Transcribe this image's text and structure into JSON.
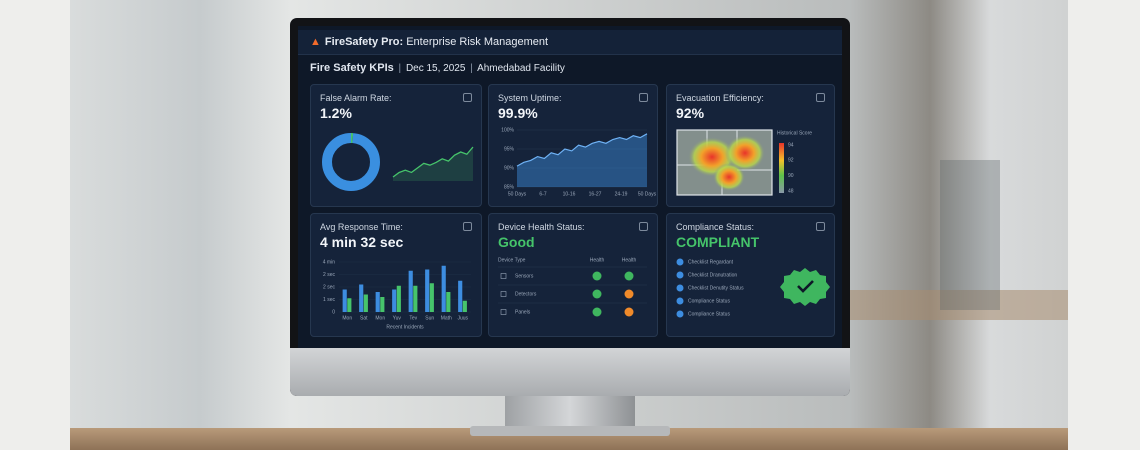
{
  "header": {
    "brand": "FireSafety Pro:",
    "title": "Enterprise Risk Management"
  },
  "subheader": {
    "title": "Fire Safety KPIs",
    "separator": "|",
    "date": "Dec 15, 2025",
    "facility": "Ahmedabad Facility"
  },
  "cards": {
    "false_alarm": {
      "label": "False Alarm Rate:",
      "value": "1.2%",
      "donut": {
        "values": [
          1.2,
          98.8
        ],
        "colors": [
          "#46c46b",
          "#3a8fe0"
        ]
      },
      "trend": {
        "values": [
          2,
          3,
          3.5,
          3,
          4,
          5,
          4.6,
          5.2,
          6,
          5.5,
          6.8,
          7.5,
          7,
          8.6
        ],
        "color": "#46c46b"
      }
    },
    "uptime": {
      "label": "System Uptime:",
      "value": "99.9%",
      "chart": {
        "ylim": [
          85,
          100
        ],
        "yticks": [
          {
            "value": 100,
            "label": "100%"
          },
          {
            "value": 95,
            "label": "95%"
          },
          {
            "value": 90,
            "label": "90%"
          },
          {
            "value": 85,
            "label": "85%"
          }
        ],
        "x_labels": [
          "50 Days",
          "6-7",
          "10-16",
          "16-27",
          "24-19",
          "50 Days"
        ],
        "values": [
          90.5,
          91.5,
          92,
          93,
          92.5,
          94,
          93.5,
          95,
          94.5,
          96,
          95.5,
          96.5,
          97,
          96.5,
          97.5,
          98,
          97.5,
          98.5,
          98,
          99
        ],
        "color": "#3d8de0"
      }
    },
    "evacuation": {
      "label": "Evacuation Efficiency:",
      "value": "92%",
      "legend": {
        "title": "Historical Score",
        "ticks": [
          "94",
          "92",
          "90",
          "48"
        ]
      }
    },
    "response": {
      "label": "Avg Response Time:",
      "value": "4 min 32 sec",
      "chart": {
        "ylim": [
          0,
          4
        ],
        "ytick_labels": [
          "4 min",
          "2 sec",
          "2 sec",
          "1 sec",
          "0"
        ],
        "categories": [
          "Mon",
          "Sat",
          "Mon",
          "Yuv",
          "Tev",
          "Sun",
          "Math",
          "Juus"
        ],
        "caption": "Recent Incidents",
        "series": [
          {
            "color": "#3d8de0",
            "values": [
              1.8,
              2.2,
              1.6,
              1.8,
              3.3,
              3.4,
              3.7,
              2.5
            ]
          },
          {
            "color": "#46c46b",
            "values": [
              1.1,
              1.4,
              1.2,
              2.1,
              2.1,
              2.3,
              1.6,
              0.9
            ]
          }
        ]
      }
    },
    "device": {
      "label": "Device Health Status:",
      "value": "Good",
      "table": {
        "header": [
          "Device Type",
          "Health",
          "Health"
        ],
        "rows": [
          "Sensors",
          "Detectors",
          "Panels"
        ]
      }
    },
    "compliance": {
      "label": "Compliance Status:",
      "value": "COMPLIANT",
      "items": [
        "Checklist Regardant",
        "Checklist Dranutration",
        "Checklist Denutity Status",
        "Compliance Status",
        "Compliance Status"
      ]
    }
  }
}
